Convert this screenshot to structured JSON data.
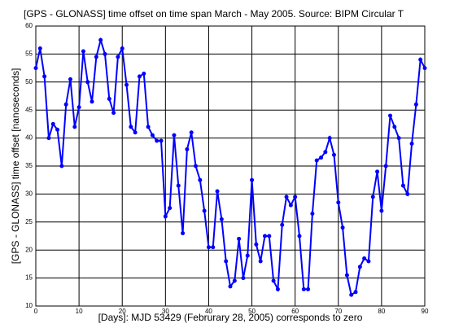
{
  "chart_data": {
    "type": "line",
    "title": "[GPS - GLONASS] time offset on time span March - May 2005. Source: BIPM Circular T",
    "x_label": "[Days]: MJD 53429 (Februrary 28, 2005) corresponds to zero",
    "y_label": "[GPS - GLONASS] time offset [nanoseconds]",
    "x": [
      0,
      1,
      2,
      3,
      4,
      5,
      6,
      7,
      8,
      9,
      10,
      11,
      12,
      13,
      14,
      15,
      16,
      17,
      18,
      19,
      20,
      21,
      22,
      23,
      24,
      25,
      26,
      27,
      28,
      29,
      30,
      31,
      32,
      33,
      34,
      35,
      36,
      37,
      38,
      39,
      40,
      41,
      42,
      43,
      44,
      45,
      46,
      47,
      48,
      49,
      50,
      51,
      52,
      53,
      54,
      55,
      56,
      57,
      58,
      59,
      60,
      61,
      62,
      63,
      64,
      65,
      66,
      67,
      68,
      69,
      70,
      71,
      72,
      73,
      74,
      75,
      76,
      77,
      78,
      79,
      80,
      81,
      82,
      83,
      84,
      85,
      86,
      87,
      88,
      89,
      90
    ],
    "values": [
      52.5,
      56,
      51,
      40,
      42.5,
      41.5,
      35,
      46,
      50.5,
      42,
      45.5,
      55.5,
      50,
      46.5,
      54.5,
      57.5,
      55,
      47,
      44.5,
      54.5,
      56,
      49.5,
      42,
      41,
      51,
      51.5,
      42,
      40.5,
      39.5,
      39.5,
      26,
      27.5,
      40.5,
      31.5,
      23,
      38,
      41,
      35,
      32.5,
      27,
      20.5,
      20.5,
      30.5,
      25.5,
      18,
      13.5,
      14.5,
      22,
      15,
      19,
      32.5,
      21,
      18,
      22.5,
      22.5,
      14.5,
      13,
      24.5,
      29.5,
      28,
      29.5,
      22.5,
      13,
      13,
      26.5,
      36,
      36.5,
      37.5,
      40,
      37,
      28.5,
      24,
      15.5,
      12,
      12.5,
      17,
      18.5,
      18,
      29.5,
      34,
      27,
      35,
      44,
      42,
      40,
      31.5,
      30,
      39,
      46,
      54,
      52.5
    ],
    "color": "#0000ff",
    "xlim": [
      0,
      90
    ],
    "xticks": [
      0,
      10,
      20,
      30,
      40,
      50,
      60,
      70,
      80,
      90
    ],
    "ylim": [
      10,
      60
    ],
    "yticks": [
      10,
      15,
      20,
      25,
      30,
      35,
      40,
      45,
      50,
      55,
      60
    ],
    "grid": true
  }
}
